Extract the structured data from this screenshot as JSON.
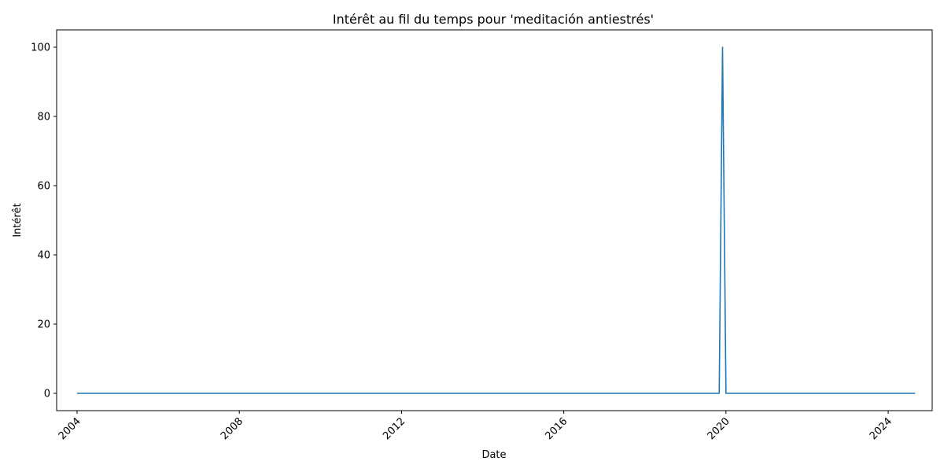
{
  "chart_data": {
    "type": "line",
    "title": "Intérêt au fil du temps pour 'meditación antiestrés'",
    "xlabel": "Date",
    "ylabel": "Intérêt",
    "x_ticks": [
      "2004",
      "2008",
      "2012",
      "2016",
      "2020",
      "2024"
    ],
    "y_ticks": [
      0,
      20,
      40,
      60,
      80,
      100
    ],
    "xlim": [
      "2003-07-01",
      "2025-02-01"
    ],
    "ylim": [
      -5,
      105
    ],
    "grid": false,
    "line_color": "#1f77b4",
    "series": [
      {
        "x": [
          "2004-01-01",
          "2019-11-01",
          "2019-12-01",
          "2020-01-01",
          "2024-09-01"
        ],
        "values": [
          0,
          0,
          100,
          0,
          0
        ]
      }
    ]
  }
}
